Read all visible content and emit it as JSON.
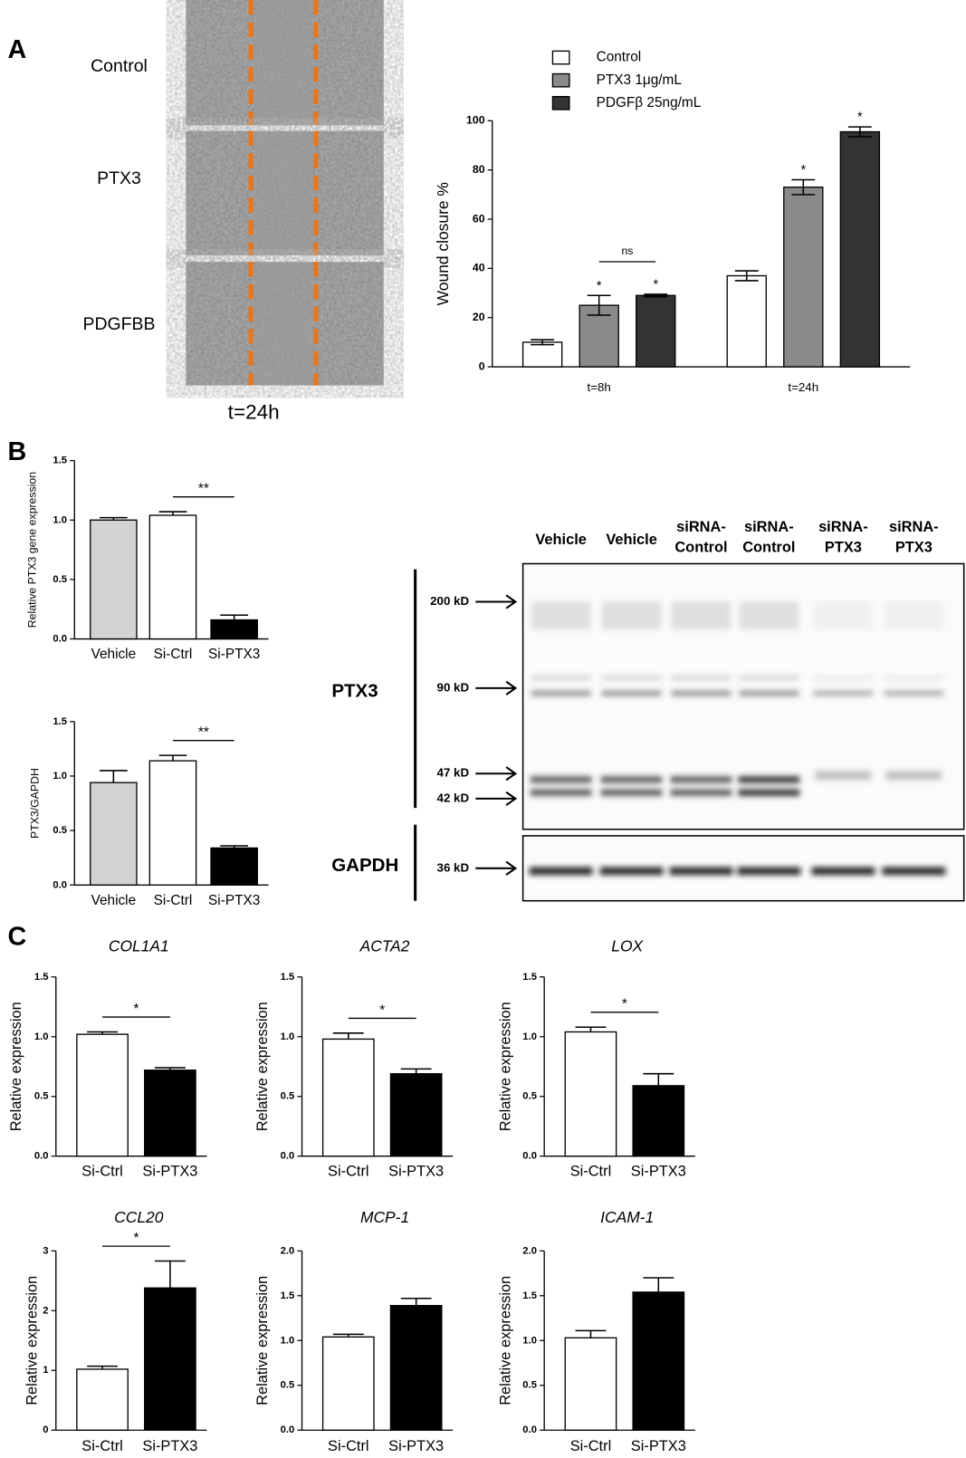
{
  "figure": {
    "panel_labels": [
      "A",
      "B",
      "C"
    ],
    "micrographs": [
      "Control",
      "PTX3",
      "PDGFBB"
    ],
    "micrograph_time": "t=24h",
    "lanes": [
      [
        "Vehicle"
      ],
      [
        "Vehicle"
      ],
      [
        "siRNA-",
        "Control"
      ],
      [
        "siRNA-",
        "Control"
      ],
      [
        "siRNA-",
        "PTX3"
      ],
      [
        "siRNA-",
        "PTX3"
      ]
    ],
    "blots": [
      "PTX3",
      "GAPDH"
    ],
    "markers": [
      "200 kD",
      "90 kD",
      "47 kD",
      "42 kD",
      "36 kD"
    ]
  },
  "chart_data": [
    {
      "type": "bar",
      "ylabel": "Wound closure %",
      "categories": [
        "t=8h",
        "t=24h"
      ],
      "series": [
        {
          "name": "Control",
          "color": "#ffffff",
          "values": [
            10,
            37
          ],
          "errors": [
            1,
            2
          ]
        },
        {
          "name": "PTX3 1μg/mL",
          "color": "#8a8a8a",
          "values": [
            25,
            73
          ],
          "errors": [
            4,
            3
          ]
        },
        {
          "name": "PDGFβ 25ng/mL",
          "color": "#333333",
          "values": [
            29,
            95.5
          ],
          "errors": [
            0.5,
            2
          ]
        }
      ],
      "ylim": [
        0,
        100
      ],
      "yticks": [
        0,
        20,
        40,
        60,
        80,
        100
      ],
      "significance": [
        {
          "text": "*",
          "series": 1,
          "category": 0
        },
        {
          "text": "*",
          "series": 2,
          "category": 0
        },
        {
          "text": "ns",
          "series": [
            1,
            2
          ],
          "category": 0
        },
        {
          "text": "*",
          "series": 1,
          "category": 1
        },
        {
          "text": "*",
          "series": 2,
          "category": 1
        }
      ]
    },
    {
      "type": "bar",
      "ylabel": "Relative PTX3 gene expression",
      "categories": [
        "Vehicle",
        "Si-Ctrl",
        "Si-PTX3"
      ],
      "values": [
        1.0,
        1.04,
        0.16
      ],
      "errors": [
        0.02,
        0.03,
        0.04
      ],
      "colors": [
        "#d3d3d3",
        "#ffffff",
        "#000000"
      ],
      "ylim": [
        0,
        1.5
      ],
      "yticks": [
        {
          "value": 0,
          "label": "0.0"
        },
        0.5,
        {
          "value": 1,
          "label": "1.0"
        },
        1.5
      ],
      "significance": [
        {
          "text": "**",
          "between": [
            1,
            2
          ]
        }
      ]
    },
    {
      "type": "bar",
      "ylabel": "PTX3/GAPDH",
      "categories": [
        "Vehicle",
        "Si-Ctrl",
        "Si-PTX3"
      ],
      "values": [
        0.94,
        1.14,
        0.34
      ],
      "errors": [
        0.11,
        0.05,
        0.02
      ],
      "colors": [
        "#d3d3d3",
        "#ffffff",
        "#000000"
      ],
      "ylim": [
        0,
        1.5
      ],
      "yticks": [
        {
          "value": 0,
          "label": "0.0"
        },
        0.5,
        {
          "value": 1,
          "label": "1.0"
        },
        1.5
      ],
      "significance": [
        {
          "text": "**",
          "between": [
            1,
            2
          ]
        }
      ]
    },
    {
      "type": "bar",
      "title": "COL1A1",
      "ylabel": "Relative expression",
      "categories": [
        "Si-Ctrl",
        "Si-PTX3"
      ],
      "values": [
        1.02,
        0.72
      ],
      "errors": [
        0.02,
        0.02
      ],
      "colors": [
        "#ffffff",
        "#000000"
      ],
      "ylim": [
        0,
        1.5
      ],
      "yticks": [
        {
          "value": 0,
          "label": "0.0"
        },
        0.5,
        {
          "value": 1,
          "label": "1.0"
        },
        1.5
      ],
      "significance": [
        {
          "text": "*",
          "between": [
            0,
            1
          ]
        }
      ]
    },
    {
      "type": "bar",
      "title": "ACTA2",
      "ylabel": "Relative expression",
      "categories": [
        "Si-Ctrl",
        "Si-PTX3"
      ],
      "values": [
        0.98,
        0.69
      ],
      "errors": [
        0.05,
        0.04
      ],
      "colors": [
        "#ffffff",
        "#000000"
      ],
      "ylim": [
        0,
        1.5
      ],
      "yticks": [
        {
          "value": 0,
          "label": "0.0"
        },
        0.5,
        {
          "value": 1,
          "label": "1.0"
        },
        1.5
      ],
      "significance": [
        {
          "text": "*",
          "between": [
            0,
            1
          ]
        }
      ]
    },
    {
      "type": "bar",
      "title": "LOX",
      "ylabel": "Relative expression",
      "categories": [
        "Si-Ctrl",
        "Si-PTX3"
      ],
      "values": [
        1.04,
        0.59
      ],
      "errors": [
        0.04,
        0.1
      ],
      "colors": [
        "#ffffff",
        "#000000"
      ],
      "ylim": [
        0,
        1.5
      ],
      "yticks": [
        {
          "value": 0,
          "label": "0.0"
        },
        0.5,
        {
          "value": 1,
          "label": "1.0"
        },
        1.5
      ],
      "significance": [
        {
          "text": "*",
          "between": [
            0,
            1
          ]
        }
      ]
    },
    {
      "type": "bar",
      "title": "CCL20",
      "ylabel": "Relative expression",
      "categories": [
        "Si-Ctrl",
        "Si-PTX3"
      ],
      "values": [
        1.02,
        2.38
      ],
      "errors": [
        0.05,
        0.45
      ],
      "colors": [
        "#ffffff",
        "#000000"
      ],
      "ylim": [
        0,
        3
      ],
      "yticks": [
        0,
        1,
        2,
        3
      ],
      "significance": [
        {
          "text": "*",
          "between": [
            0,
            1
          ]
        }
      ]
    },
    {
      "type": "bar",
      "title": "MCP-1",
      "ylabel": "Relative expression",
      "categories": [
        "Si-Ctrl",
        "Si-PTX3"
      ],
      "values": [
        1.04,
        1.39
      ],
      "errors": [
        0.03,
        0.08
      ],
      "colors": [
        "#ffffff",
        "#000000"
      ],
      "ylim": [
        0,
        2
      ],
      "yticks": [
        {
          "value": 0,
          "label": "0.0"
        },
        0.5,
        {
          "value": 1,
          "label": "1.0"
        },
        1.5,
        {
          "value": 2,
          "label": "2.0"
        }
      ]
    },
    {
      "type": "bar",
      "title": "ICAM-1",
      "ylabel": "Relative expression",
      "categories": [
        "Si-Ctrl",
        "Si-PTX3"
      ],
      "values": [
        1.03,
        1.54
      ],
      "errors": [
        0.08,
        0.16
      ],
      "colors": [
        "#ffffff",
        "#000000"
      ],
      "ylim": [
        0,
        2
      ],
      "yticks": [
        {
          "value": 0,
          "label": "0.0"
        },
        0.5,
        {
          "value": 1,
          "label": "1.0"
        },
        1.5,
        {
          "value": 2,
          "label": "2.0"
        }
      ]
    }
  ]
}
